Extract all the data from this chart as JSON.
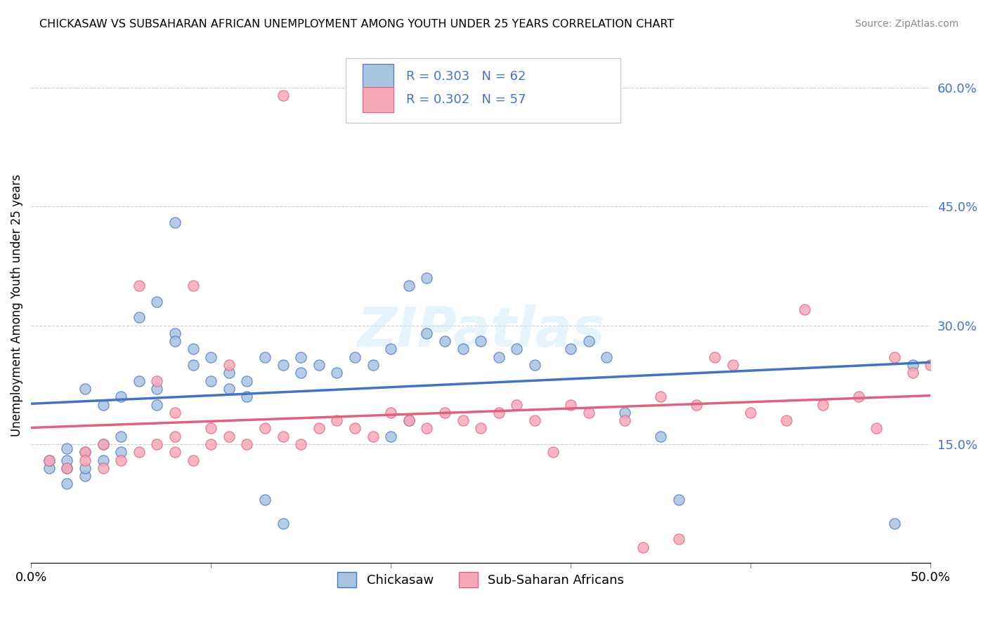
{
  "title": "CHICKASAW VS SUBSAHARAN AFRICAN UNEMPLOYMENT AMONG YOUTH UNDER 25 YEARS CORRELATION CHART",
  "source": "Source: ZipAtlas.com",
  "ylabel": "Unemployment Among Youth under 25 years",
  "xlim": [
    0.0,
    0.5
  ],
  "ylim": [
    0.0,
    0.65
  ],
  "yticks": [
    0.0,
    0.15,
    0.3,
    0.45,
    0.6
  ],
  "ytick_labels": [
    "",
    "15.0%",
    "30.0%",
    "45.0%",
    "60.0%"
  ],
  "xticks": [
    0.0,
    0.1,
    0.2,
    0.3,
    0.4,
    0.5
  ],
  "legend_label1": "Chickasaw",
  "legend_label2": "Sub-Saharan Africans",
  "r1": 0.303,
  "n1": 62,
  "r2": 0.302,
  "n2": 57,
  "color1": "#a8c4e0",
  "color2": "#f4a8b8",
  "line_color1": "#4472c4",
  "line_color2": "#e06080",
  "dash_color": "#aaaaaa",
  "watermark": "ZIPatlas",
  "chickasaw_x": [
    0.02,
    0.02,
    0.03,
    0.03,
    0.02,
    0.01,
    0.01,
    0.02,
    0.03,
    0.04,
    0.04,
    0.05,
    0.05,
    0.04,
    0.03,
    0.05,
    0.06,
    0.07,
    0.07,
    0.08,
    0.08,
    0.09,
    0.09,
    0.1,
    0.1,
    0.11,
    0.11,
    0.12,
    0.12,
    0.13,
    0.14,
    0.15,
    0.15,
    0.16,
    0.17,
    0.18,
    0.19,
    0.2,
    0.21,
    0.22,
    0.22,
    0.23,
    0.24,
    0.25,
    0.26,
    0.27,
    0.28,
    0.3,
    0.31,
    0.32,
    0.33,
    0.13,
    0.14,
    0.08,
    0.07,
    0.06,
    0.2,
    0.21,
    0.35,
    0.36,
    0.48,
    0.49
  ],
  "chickasaw_y": [
    0.12,
    0.13,
    0.11,
    0.14,
    0.1,
    0.12,
    0.13,
    0.145,
    0.12,
    0.13,
    0.15,
    0.14,
    0.16,
    0.2,
    0.22,
    0.21,
    0.23,
    0.2,
    0.22,
    0.29,
    0.28,
    0.25,
    0.27,
    0.23,
    0.26,
    0.22,
    0.24,
    0.21,
    0.23,
    0.26,
    0.25,
    0.24,
    0.26,
    0.25,
    0.24,
    0.26,
    0.25,
    0.27,
    0.35,
    0.36,
    0.29,
    0.28,
    0.27,
    0.28,
    0.26,
    0.27,
    0.25,
    0.27,
    0.28,
    0.26,
    0.19,
    0.08,
    0.05,
    0.43,
    0.33,
    0.31,
    0.16,
    0.18,
    0.16,
    0.08,
    0.05,
    0.25
  ],
  "subsaharan_x": [
    0.01,
    0.02,
    0.03,
    0.03,
    0.04,
    0.04,
    0.05,
    0.06,
    0.07,
    0.08,
    0.08,
    0.09,
    0.1,
    0.1,
    0.11,
    0.12,
    0.13,
    0.14,
    0.15,
    0.16,
    0.17,
    0.18,
    0.19,
    0.2,
    0.21,
    0.22,
    0.23,
    0.24,
    0.25,
    0.26,
    0.27,
    0.28,
    0.3,
    0.31,
    0.33,
    0.35,
    0.37,
    0.4,
    0.42,
    0.44,
    0.46,
    0.48,
    0.49,
    0.38,
    0.39,
    0.43,
    0.47,
    0.34,
    0.36,
    0.5,
    0.29,
    0.06,
    0.07,
    0.08,
    0.09,
    0.11,
    0.14
  ],
  "subsaharan_y": [
    0.13,
    0.12,
    0.14,
    0.13,
    0.12,
    0.15,
    0.13,
    0.14,
    0.15,
    0.14,
    0.16,
    0.13,
    0.15,
    0.17,
    0.16,
    0.15,
    0.17,
    0.16,
    0.15,
    0.17,
    0.18,
    0.17,
    0.16,
    0.19,
    0.18,
    0.17,
    0.19,
    0.18,
    0.17,
    0.19,
    0.2,
    0.18,
    0.2,
    0.19,
    0.18,
    0.21,
    0.2,
    0.19,
    0.18,
    0.2,
    0.21,
    0.26,
    0.24,
    0.26,
    0.25,
    0.32,
    0.17,
    0.02,
    0.03,
    0.25,
    0.14,
    0.35,
    0.23,
    0.19,
    0.35,
    0.25,
    0.59
  ]
}
